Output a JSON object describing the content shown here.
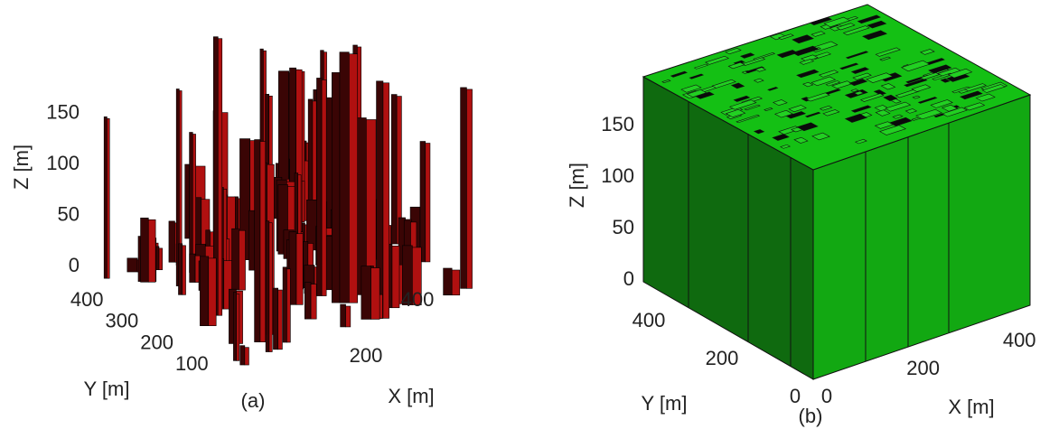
{
  "chart_data": [
    {
      "type": "3d-city",
      "caption": "(a)",
      "xlabel": "X [m]",
      "ylabel": "Y [m]",
      "zlabel": "Z [m]",
      "xticks": [
        200,
        400
      ],
      "yticks": [
        100,
        200,
        300,
        400
      ],
      "zticks": [
        0,
        50,
        100,
        150
      ],
      "color": "#b01010"
    },
    {
      "type": "3d-city",
      "caption": "(b)",
      "xlabel": "X [m]",
      "ylabel": "Y [m]",
      "zlabel": "Z [m]",
      "xticks": [
        0,
        200,
        400
      ],
      "yticks": [
        0,
        200,
        400
      ],
      "zticks": [
        0,
        50,
        100,
        150
      ],
      "color": "#10b010"
    }
  ]
}
